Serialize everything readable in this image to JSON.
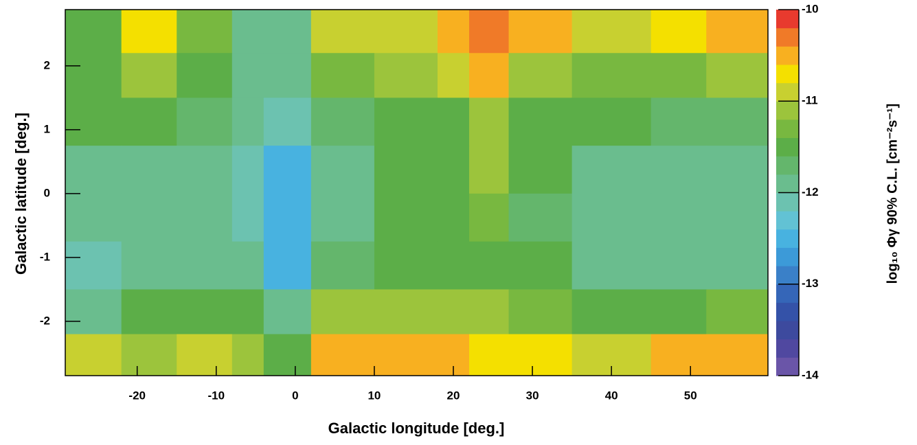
{
  "chart_data": {
    "type": "heatmap",
    "x_label": "Galactic longitude [deg.]",
    "y_label": "Galactic latitude [deg.]",
    "z_label": "log₁₀ Φγ 90% C.L. [cm⁻²s⁻¹]",
    "xbins": [
      -29.1,
      -22,
      -15,
      -8,
      -4,
      2,
      10,
      18,
      22,
      27,
      35,
      45,
      52,
      59.8
    ],
    "ybins": [
      2.88,
      2.2,
      1.5,
      0.75,
      0,
      -0.75,
      -1.5,
      -2.2,
      -2.85
    ],
    "z": [
      [
        -11.6,
        -10.7,
        -11.3,
        -11.8,
        -11.9,
        -10.8,
        -10.8,
        -10.6,
        -10.4,
        -10.6,
        -10.8,
        -10.7,
        -10.6
      ],
      [
        -11.5,
        -11.1,
        -11.5,
        -11.8,
        -11.9,
        -11.3,
        -11.2,
        -11.0,
        -10.6,
        -11.1,
        -11.3,
        -11.3,
        -11.2
      ],
      [
        -11.6,
        -11.6,
        -11.7,
        -11.9,
        -12.2,
        -11.7,
        -11.5,
        -11.4,
        -11.1,
        -11.5,
        -11.6,
        -11.7,
        -11.7
      ],
      [
        -11.9,
        -11.8,
        -11.9,
        -12.1,
        -12.5,
        -11.8,
        -11.6,
        -11.5,
        -11.1,
        -11.6,
        -11.8,
        -11.9,
        -11.9
      ],
      [
        -11.9,
        -11.8,
        -11.9,
        -12.1,
        -12.6,
        -11.8,
        -11.5,
        -11.6,
        -11.3,
        -11.7,
        -11.9,
        -11.9,
        -11.9
      ],
      [
        -12.2,
        -12.0,
        -11.9,
        -12.0,
        -12.6,
        -11.7,
        -11.6,
        -11.6,
        -11.4,
        -11.6,
        -11.8,
        -11.9,
        -11.8
      ],
      [
        -11.8,
        -11.6,
        -11.4,
        -11.5,
        -11.9,
        -11.2,
        -11.2,
        -11.2,
        -11.2,
        -11.3,
        -11.4,
        -11.4,
        -11.3
      ],
      [
        -11.0,
        -11.1,
        -10.9,
        -11.2,
        -11.4,
        -10.6,
        -10.6,
        -10.6,
        -10.7,
        -10.7,
        -10.8,
        -10.6,
        -10.5
      ]
    ],
    "xlim": [
      -29.1,
      59.8
    ],
    "xticks": [
      -20,
      -10,
      0,
      10,
      20,
      30,
      40,
      50
    ],
    "ylim": [
      -2.85,
      2.88
    ],
    "yticks": [
      -2,
      -1,
      0,
      1,
      2
    ],
    "zlim": [
      -14,
      -10
    ],
    "zticks": [
      -14,
      -13,
      -12,
      -11,
      -10
    ],
    "colors": [
      "#6a55a8",
      "#5048a0",
      "#3d4a9e",
      "#3452a8",
      "#3566b8",
      "#3a80c8",
      "#3c9ad8",
      "#48b2e0",
      "#62c2d4",
      "#6cc2b0",
      "#6abd8e",
      "#64b66c",
      "#5cae48",
      "#78b840",
      "#9cc43c",
      "#c8d030",
      "#f4e000",
      "#f8b020",
      "#f07a28",
      "#e83a2e"
    ]
  }
}
